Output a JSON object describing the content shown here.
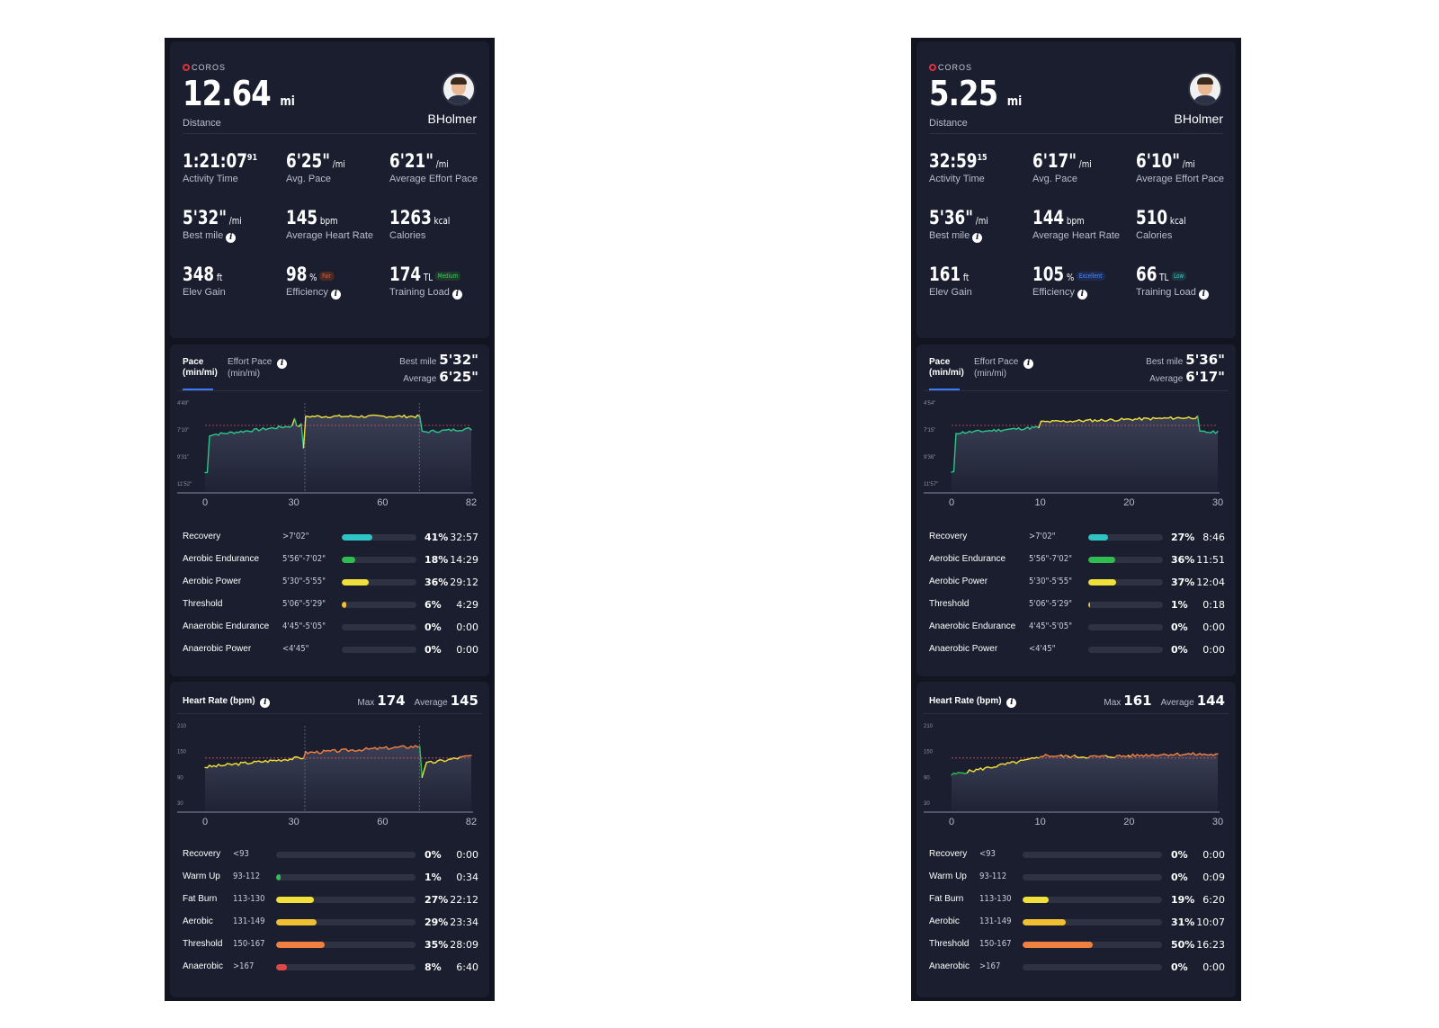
{
  "screens": [
    {
      "logo": "COROS",
      "distance": {
        "value": "12.64",
        "unit": "mi",
        "label": "Distance"
      },
      "user": "BHolmer",
      "stats": [
        {
          "value": "1:21:07",
          "sup": "91",
          "unit": "",
          "label": "Activity Time"
        },
        {
          "value": "6'25\"",
          "unit": "/mi",
          "label": "Avg. Pace"
        },
        {
          "value": "6'21\"",
          "unit": "/mi",
          "label": "Average Effort Pace"
        },
        {
          "value": "5'32\"",
          "unit": "/mi",
          "label": "Best mile",
          "info": true
        },
        {
          "value": "145",
          "unit": "bpm",
          "label": "Average Heart Rate"
        },
        {
          "value": "1263",
          "unit": "kcal",
          "label": "Calories"
        },
        {
          "value": "348",
          "unit": "ft",
          "label": "Elev Gain"
        },
        {
          "value": "98",
          "unit": "%",
          "badge": "Fair",
          "badge_color": "#e0603a",
          "badge_bg": "#4a2a26",
          "label": "Efficiency",
          "info": true
        },
        {
          "value": "174",
          "unit": "TL",
          "badge": "Medium",
          "badge_color": "#3ecf6a",
          "badge_bg": "#1f3a2a",
          "label": "Training Load",
          "info": true
        }
      ],
      "pace": {
        "tab1": "Pace",
        "tab1_unit": "(min/mi)",
        "tab2": "Effort Pace",
        "tab2_unit": "(min/mi)",
        "best_label": "Best mile",
        "best": "5'32\"",
        "avg_label": "Average",
        "avg": "6'25\"",
        "y_ticks": [
          "4'49\"",
          "7'10\"",
          "9'31\"",
          "11'52\""
        ],
        "x_ticks": [
          "0",
          "30",
          "60",
          "82"
        ],
        "zones": [
          {
            "name": "Recovery",
            "range": ">7'02\"",
            "pct": "41%",
            "fill": 0.41,
            "color": "#2ec4c4",
            "time": "32:57"
          },
          {
            "name": "Aerobic Endurance",
            "range": "5'56\"-7'02\"",
            "pct": "18%",
            "fill": 0.18,
            "color": "#2ebd4e",
            "time": "14:29"
          },
          {
            "name": "Aerobic Power",
            "range": "5'30\"-5'55\"",
            "pct": "36%",
            "fill": 0.36,
            "color": "#f0e03a",
            "time": "29:12"
          },
          {
            "name": "Threshold",
            "range": "5'06\"-5'29\"",
            "pct": "6%",
            "fill": 0.06,
            "color": "#f0c030",
            "time": "4:29"
          },
          {
            "name": "Anaerobic Endurance",
            "range": "4'45\"-5'05\"",
            "pct": "0%",
            "fill": 0,
            "color": "#f08030",
            "time": "0:00"
          },
          {
            "name": "Anaerobic Power",
            "range": "<4'45\"",
            "pct": "0%",
            "fill": 0,
            "color": "#e04040",
            "time": "0:00"
          }
        ]
      },
      "hr": {
        "title": "Heart Rate (bpm)",
        "max_label": "Max",
        "max": "174",
        "avg_label": "Average",
        "avg": "145",
        "y_ticks": [
          "210",
          "150",
          "90",
          "30"
        ],
        "x_ticks": [
          "0",
          "30",
          "60",
          "82"
        ],
        "zones": [
          {
            "name": "Recovery",
            "range": "<93",
            "pct": "0%",
            "fill": 0,
            "color": "#2ec4c4",
            "time": "0:00"
          },
          {
            "name": "Warm Up",
            "range": "93-112",
            "pct": "1%",
            "fill": 0.01,
            "color": "#2ebd4e",
            "time": "0:34"
          },
          {
            "name": "Fat Burn",
            "range": "113-130",
            "pct": "27%",
            "fill": 0.27,
            "color": "#f0e03a",
            "time": "22:12"
          },
          {
            "name": "Aerobic",
            "range": "131-149",
            "pct": "29%",
            "fill": 0.29,
            "color": "#f0c030",
            "time": "23:34"
          },
          {
            "name": "Threshold",
            "range": "150-167",
            "pct": "35%",
            "fill": 0.35,
            "color": "#f08040",
            "time": "28:09"
          },
          {
            "name": "Anaerobic",
            "range": ">167",
            "pct": "8%",
            "fill": 0.08,
            "color": "#e04848",
            "time": "6:40"
          }
        ]
      }
    },
    {
      "logo": "COROS",
      "distance": {
        "value": "5.25",
        "unit": "mi",
        "label": "Distance"
      },
      "user": "BHolmer",
      "stats": [
        {
          "value": "32:59",
          "sup": "15",
          "unit": "",
          "label": "Activity Time"
        },
        {
          "value": "6'17\"",
          "unit": "/mi",
          "label": "Avg. Pace"
        },
        {
          "value": "6'10\"",
          "unit": "/mi",
          "label": "Average Effort Pace"
        },
        {
          "value": "5'36\"",
          "unit": "/mi",
          "label": "Best mile",
          "info": true
        },
        {
          "value": "144",
          "unit": "bpm",
          "label": "Average Heart Rate"
        },
        {
          "value": "510",
          "unit": "kcal",
          "label": "Calories"
        },
        {
          "value": "161",
          "unit": "ft",
          "label": "Elev Gain"
        },
        {
          "value": "105",
          "unit": "%",
          "badge": "Excellent",
          "badge_color": "#4a8cff",
          "badge_bg": "#1e2c52",
          "label": "Efficiency",
          "info": true
        },
        {
          "value": "66",
          "unit": "TL",
          "badge": "Low",
          "badge_color": "#3ec9d0",
          "badge_bg": "#1c3a40",
          "label": "Training Load",
          "info": true
        }
      ],
      "pace": {
        "tab1": "Pace",
        "tab1_unit": "(min/mi)",
        "tab2": "Effort Pace",
        "tab2_unit": "(min/mi)",
        "best_label": "Best mile",
        "best": "5'36\"",
        "avg_label": "Average",
        "avg": "6'17\"",
        "y_ticks": [
          "4'54\"",
          "7'15\"",
          "9'36\"",
          "11'57\""
        ],
        "x_ticks": [
          "0",
          "10",
          "20",
          "30"
        ],
        "zones": [
          {
            "name": "Recovery",
            "range": ">7'02\"",
            "pct": "27%",
            "fill": 0.27,
            "color": "#2ec4c4",
            "time": "8:46"
          },
          {
            "name": "Aerobic Endurance",
            "range": "5'56\"-7'02\"",
            "pct": "36%",
            "fill": 0.36,
            "color": "#2ebd4e",
            "time": "11:51"
          },
          {
            "name": "Aerobic Power",
            "range": "5'30\"-5'55\"",
            "pct": "37%",
            "fill": 0.37,
            "color": "#f0e03a",
            "time": "12:04"
          },
          {
            "name": "Threshold",
            "range": "5'06\"-5'29\"",
            "pct": "1%",
            "fill": 0.01,
            "color": "#f0c030",
            "time": "0:18"
          },
          {
            "name": "Anaerobic Endurance",
            "range": "4'45\"-5'05\"",
            "pct": "0%",
            "fill": 0,
            "color": "#f08030",
            "time": "0:00"
          },
          {
            "name": "Anaerobic Power",
            "range": "<4'45\"",
            "pct": "0%",
            "fill": 0,
            "color": "#e04040",
            "time": "0:00"
          }
        ]
      },
      "hr": {
        "title": "Heart Rate (bpm)",
        "max_label": "Max",
        "max": "161",
        "avg_label": "Average",
        "avg": "144",
        "y_ticks": [
          "210",
          "150",
          "90",
          "30"
        ],
        "x_ticks": [
          "0",
          "10",
          "20",
          "30"
        ],
        "zones": [
          {
            "name": "Recovery",
            "range": "<93",
            "pct": "0%",
            "fill": 0,
            "color": "#2ec4c4",
            "time": "0:00"
          },
          {
            "name": "Warm Up",
            "range": "93-112",
            "pct": "0%",
            "fill": 0,
            "color": "#2ebd4e",
            "time": "0:09"
          },
          {
            "name": "Fat Burn",
            "range": "113-130",
            "pct": "19%",
            "fill": 0.19,
            "color": "#f0e03a",
            "time": "6:20"
          },
          {
            "name": "Aerobic",
            "range": "131-149",
            "pct": "31%",
            "fill": 0.31,
            "color": "#f0c030",
            "time": "10:07"
          },
          {
            "name": "Threshold",
            "range": "150-167",
            "pct": "50%",
            "fill": 0.5,
            "color": "#f08040",
            "time": "16:23"
          },
          {
            "name": "Anaerobic",
            "range": ">167",
            "pct": "0%",
            "fill": 0,
            "color": "#e04848",
            "time": "0:00"
          }
        ]
      }
    }
  ]
}
